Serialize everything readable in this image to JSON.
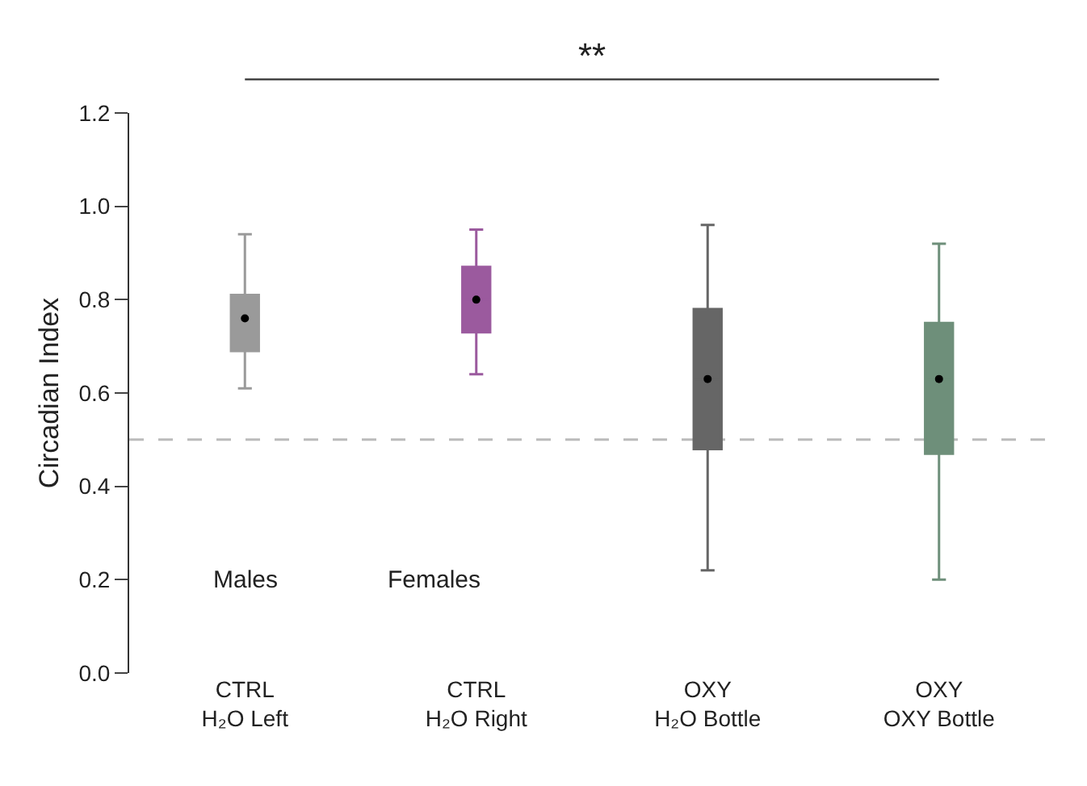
{
  "chart_data": {
    "type": "box",
    "ylabel": "Circadian Index",
    "categories": [
      "CTRL\nH₂O Left",
      "CTRL\nH₂O Right",
      "OXY\nH₂O Bottle",
      "OXY\nOXY Bottle"
    ],
    "boxes": [
      {
        "low": 0.61,
        "q1": 0.69,
        "median": 0.76,
        "q3": 0.81,
        "high": 0.94,
        "mean": 0.76
      },
      {
        "low": 0.64,
        "q1": 0.73,
        "median": 0.8,
        "q3": 0.87,
        "high": 0.95,
        "mean": 0.8
      },
      {
        "low": 0.22,
        "q1": 0.48,
        "median": 0.63,
        "q3": 0.78,
        "high": 0.96,
        "mean": 0.63
      },
      {
        "low": 0.2,
        "q1": 0.47,
        "median": 0.63,
        "q3": 0.75,
        "high": 0.92,
        "mean": 0.63
      }
    ],
    "colors": [
      "#9a9a9a",
      "#9b5a9e",
      "#666666",
      "#6e8f7a"
    ],
    "ylim": [
      0,
      1.2
    ],
    "yticks": [
      {
        "value": 0,
        "label": "0.0"
      },
      0.2,
      0.4,
      0.6,
      0.8,
      {
        "value": 1,
        "label": "1.0"
      },
      1.2
    ],
    "ref_lines": [
      {
        "axis": "y",
        "value": 0.5,
        "color": "#bbbbbb",
        "line_style": "dashed"
      }
    ],
    "annotations": [
      "**",
      "Males",
      "Females"
    ],
    "grid": false
  }
}
